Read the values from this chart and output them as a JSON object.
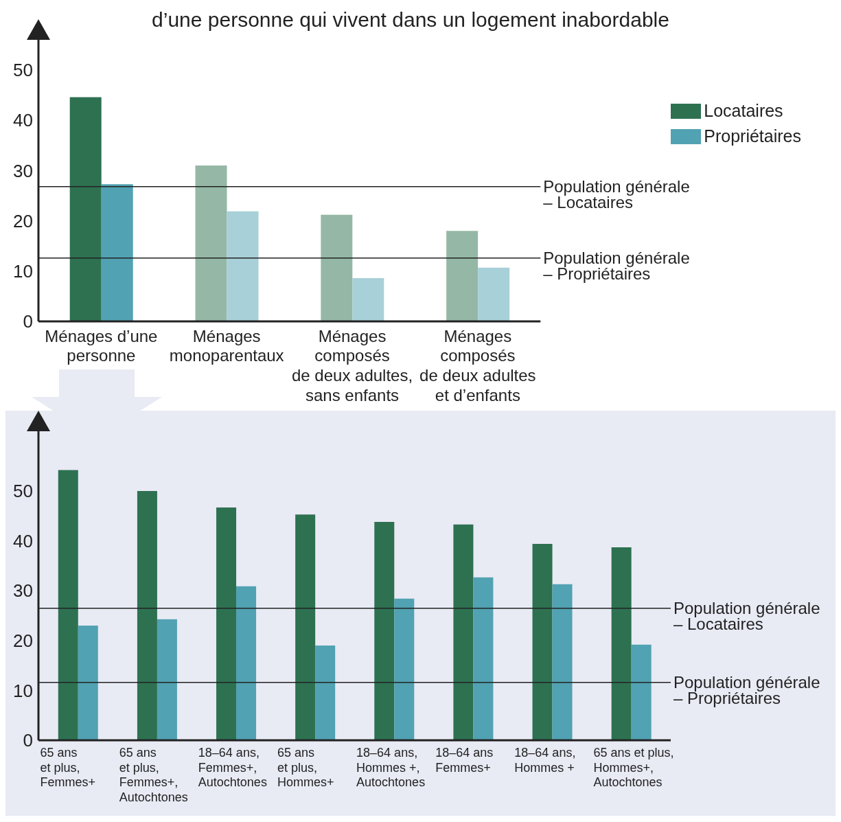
{
  "chart_data": [
    {
      "type": "bar",
      "title": "d’une personne qui vivent dans un logement inabordable",
      "categories": [
        "Ménages d’une\npersonne",
        "Ménages\nmonoparentaux",
        "Ménages\ncomposés\nde deux adultes,\nsans enfants",
        "Ménages\ncomposés\nde deux adultes\net d’enfants"
      ],
      "series": [
        {
          "name": "Locataires",
          "colors": [
            "#2d7151",
            "#94b8a5",
            "#94b8a5",
            "#94b8a5"
          ],
          "values": [
            44.6,
            31.0,
            21.2,
            18.0
          ]
        },
        {
          "name": "Propriétaires",
          "colors": [
            "#51a2b2",
            "#a8d0d8",
            "#a8d0d8",
            "#a8d0d8"
          ],
          "values": [
            27.3,
            21.9,
            8.6,
            10.7
          ]
        }
      ],
      "ylim": [
        0,
        56
      ],
      "yticks": [
        0,
        10,
        20,
        30,
        40,
        50
      ],
      "grid": false,
      "legend": "top right",
      "ref_lines": [
        {
          "axis": "y",
          "value": 26.8,
          "label": "Population générale\n– Locataires",
          "color": "#222222"
        },
        {
          "axis": "y",
          "value": 12.6,
          "label": "Population générale\n– Propriétaires",
          "color": "#222222"
        }
      ]
    },
    {
      "type": "bar",
      "categories": [
        "65 ans\net plus,\nFemmes+",
        "65 ans\net plus,\nFemmes+,\nAutochtones",
        "18–64 ans,\nFemmes+,\nAutochtones",
        "65 ans\net plus,\nHommes+",
        "18–64 ans,\nHommes +,\nAutochtones",
        "18–64 ans\nFemmes+",
        "18–64 ans,\nHommes +",
        "65 ans et plus,\nHommes+,\nAutochtones"
      ],
      "series": [
        {
          "color": "#2d7151",
          "values": [
            54.2,
            50.0,
            46.7,
            45.3,
            43.8,
            43.3,
            39.4,
            38.7
          ]
        },
        {
          "color": "#51a2b2",
          "values": [
            23.0,
            24.3,
            30.9,
            19.0,
            28.4,
            32.7,
            31.3,
            19.2
          ]
        }
      ],
      "ylim": [
        0,
        62
      ],
      "yticks": [
        0,
        10,
        20,
        30,
        40,
        50
      ],
      "grid": false,
      "legend": false,
      "ref_lines": [
        {
          "axis": "y",
          "value": 26.5,
          "label": "Population générale\n– Locataires",
          "color": "#222222"
        },
        {
          "axis": "y",
          "value": 11.6,
          "label": "Population générale\n– Propriétaires",
          "color": "#222222"
        }
      ]
    }
  ]
}
